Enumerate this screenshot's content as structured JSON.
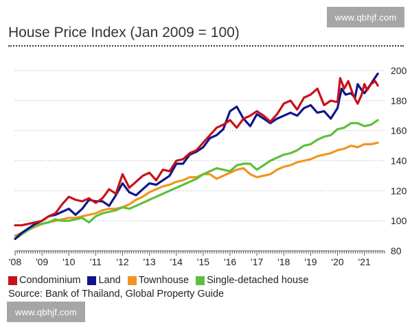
{
  "watermark": {
    "top": "www.qbhjf.com",
    "bottom": "www.qbhjf.com"
  },
  "chart_data": {
    "type": "line",
    "title": "House Price Index (Jan 2009 = 100)",
    "xlabel": "",
    "ylabel": "",
    "x_range": [
      2008.0,
      2021.75
    ],
    "ylim": [
      80,
      200
    ],
    "x_ticks": [
      {
        "value": 2008.0,
        "label": "'08"
      },
      {
        "value": 2009.0,
        "label": "'09"
      },
      {
        "value": 2010.0,
        "label": "'10"
      },
      {
        "value": 2011.0,
        "label": "'11"
      },
      {
        "value": 2012.0,
        "label": "'12"
      },
      {
        "value": 2013.0,
        "label": "'13"
      },
      {
        "value": 2014.0,
        "label": "'14"
      },
      {
        "value": 2015.0,
        "label": "'15"
      },
      {
        "value": 2016.0,
        "label": "'16"
      },
      {
        "value": 2017.0,
        "label": "'17"
      },
      {
        "value": 2018.0,
        "label": "'18"
      },
      {
        "value": 2019.0,
        "label": "'19"
      },
      {
        "value": 2020.0,
        "label": "'20"
      },
      {
        "value": 2021.0,
        "label": "'21"
      }
    ],
    "y_ticks": [
      80,
      100,
      120,
      140,
      160,
      180,
      200
    ],
    "grid": "horizontal dotted",
    "legend_position": "bottom",
    "series": [
      {
        "name": "Condominium",
        "color": "#c8101a",
        "points": [
          [
            2008.0,
            97
          ],
          [
            2008.25,
            97
          ],
          [
            2008.5,
            98
          ],
          [
            2008.75,
            99
          ],
          [
            2009.0,
            100
          ],
          [
            2009.25,
            103
          ],
          [
            2009.5,
            105
          ],
          [
            2009.75,
            111
          ],
          [
            2010.0,
            116
          ],
          [
            2010.25,
            114
          ],
          [
            2010.5,
            113
          ],
          [
            2010.75,
            115
          ],
          [
            2011.0,
            112
          ],
          [
            2011.25,
            115
          ],
          [
            2011.5,
            121
          ],
          [
            2011.75,
            118
          ],
          [
            2012.0,
            131
          ],
          [
            2012.25,
            122
          ],
          [
            2012.5,
            126
          ],
          [
            2012.75,
            130
          ],
          [
            2013.0,
            132
          ],
          [
            2013.25,
            127
          ],
          [
            2013.5,
            134
          ],
          [
            2013.75,
            133
          ],
          [
            2014.0,
            140
          ],
          [
            2014.25,
            141
          ],
          [
            2014.5,
            145
          ],
          [
            2014.75,
            147
          ],
          [
            2015.0,
            152
          ],
          [
            2015.25,
            157
          ],
          [
            2015.5,
            162
          ],
          [
            2015.75,
            164
          ],
          [
            2016.0,
            167
          ],
          [
            2016.25,
            162
          ],
          [
            2016.5,
            168
          ],
          [
            2016.75,
            170
          ],
          [
            2017.0,
            173
          ],
          [
            2017.25,
            170
          ],
          [
            2017.5,
            166
          ],
          [
            2017.75,
            171
          ],
          [
            2018.0,
            178
          ],
          [
            2018.25,
            180
          ],
          [
            2018.5,
            174
          ],
          [
            2018.75,
            182
          ],
          [
            2019.0,
            184
          ],
          [
            2019.25,
            188
          ],
          [
            2019.5,
            177
          ],
          [
            2019.75,
            180
          ],
          [
            2020.0,
            179
          ],
          [
            2020.1,
            195
          ],
          [
            2020.25,
            188
          ],
          [
            2020.4,
            193
          ],
          [
            2020.6,
            183
          ],
          [
            2020.75,
            178
          ],
          [
            2020.9,
            184
          ],
          [
            2021.0,
            191
          ],
          [
            2021.1,
            187
          ],
          [
            2021.25,
            191
          ],
          [
            2021.4,
            193
          ],
          [
            2021.5,
            190
          ]
        ]
      },
      {
        "name": "Land",
        "color": "#10148c",
        "points": [
          [
            2008.0,
            88
          ],
          [
            2008.25,
            92
          ],
          [
            2008.5,
            95
          ],
          [
            2008.75,
            98
          ],
          [
            2009.0,
            100
          ],
          [
            2009.25,
            103
          ],
          [
            2009.5,
            104
          ],
          [
            2009.75,
            106
          ],
          [
            2010.0,
            108
          ],
          [
            2010.25,
            104
          ],
          [
            2010.5,
            108
          ],
          [
            2010.75,
            114
          ],
          [
            2011.0,
            113
          ],
          [
            2011.25,
            113
          ],
          [
            2011.5,
            110
          ],
          [
            2011.75,
            117
          ],
          [
            2012.0,
            125
          ],
          [
            2012.25,
            119
          ],
          [
            2012.5,
            117
          ],
          [
            2012.75,
            121
          ],
          [
            2013.0,
            125
          ],
          [
            2013.25,
            124
          ],
          [
            2013.5,
            127
          ],
          [
            2013.75,
            130
          ],
          [
            2014.0,
            138
          ],
          [
            2014.25,
            138
          ],
          [
            2014.5,
            144
          ],
          [
            2014.75,
            146
          ],
          [
            2015.0,
            149
          ],
          [
            2015.25,
            155
          ],
          [
            2015.5,
            157
          ],
          [
            2015.75,
            161
          ],
          [
            2016.0,
            173
          ],
          [
            2016.25,
            176
          ],
          [
            2016.5,
            168
          ],
          [
            2016.75,
            163
          ],
          [
            2017.0,
            171
          ],
          [
            2017.25,
            168
          ],
          [
            2017.5,
            165
          ],
          [
            2017.75,
            168
          ],
          [
            2018.0,
            170
          ],
          [
            2018.25,
            172
          ],
          [
            2018.5,
            170
          ],
          [
            2018.75,
            175
          ],
          [
            2019.0,
            177
          ],
          [
            2019.25,
            172
          ],
          [
            2019.5,
            173
          ],
          [
            2019.75,
            168
          ],
          [
            2020.0,
            175
          ],
          [
            2020.15,
            188
          ],
          [
            2020.3,
            184
          ],
          [
            2020.5,
            185
          ],
          [
            2020.65,
            182
          ],
          [
            2020.75,
            191
          ],
          [
            2020.9,
            187
          ],
          [
            2021.0,
            185
          ],
          [
            2021.2,
            190
          ],
          [
            2021.35,
            194
          ],
          [
            2021.5,
            198
          ]
        ]
      },
      {
        "name": "Townhouse",
        "color": "#f0951e",
        "points": [
          [
            2008.0,
            90
          ],
          [
            2008.25,
            92
          ],
          [
            2008.5,
            94
          ],
          [
            2008.75,
            96
          ],
          [
            2009.0,
            98
          ],
          [
            2009.25,
            99
          ],
          [
            2009.5,
            100
          ],
          [
            2009.75,
            101
          ],
          [
            2010.0,
            102
          ],
          [
            2010.25,
            102
          ],
          [
            2010.5,
            103
          ],
          [
            2010.75,
            104
          ],
          [
            2011.0,
            105
          ],
          [
            2011.25,
            107
          ],
          [
            2011.5,
            108
          ],
          [
            2011.75,
            108
          ],
          [
            2012.0,
            109
          ],
          [
            2012.25,
            111
          ],
          [
            2012.5,
            114
          ],
          [
            2012.75,
            116
          ],
          [
            2013.0,
            119
          ],
          [
            2013.25,
            121
          ],
          [
            2013.5,
            123
          ],
          [
            2013.75,
            124
          ],
          [
            2014.0,
            126
          ],
          [
            2014.25,
            127
          ],
          [
            2014.5,
            129
          ],
          [
            2014.75,
            129
          ],
          [
            2015.0,
            131
          ],
          [
            2015.25,
            131
          ],
          [
            2015.5,
            128
          ],
          [
            2015.75,
            130
          ],
          [
            2016.0,
            132
          ],
          [
            2016.25,
            134
          ],
          [
            2016.5,
            135
          ],
          [
            2016.75,
            131
          ],
          [
            2017.0,
            129
          ],
          [
            2017.25,
            130
          ],
          [
            2017.5,
            131
          ],
          [
            2017.75,
            134
          ],
          [
            2018.0,
            136
          ],
          [
            2018.25,
            137
          ],
          [
            2018.5,
            139
          ],
          [
            2018.75,
            140
          ],
          [
            2019.0,
            141
          ],
          [
            2019.25,
            143
          ],
          [
            2019.5,
            144
          ],
          [
            2019.75,
            145
          ],
          [
            2020.0,
            147
          ],
          [
            2020.25,
            148
          ],
          [
            2020.5,
            150
          ],
          [
            2020.75,
            149
          ],
          [
            2021.0,
            151
          ],
          [
            2021.25,
            151
          ],
          [
            2021.5,
            152
          ]
        ]
      },
      {
        "name": "Single-detached house",
        "color": "#5cbf3c",
        "points": [
          [
            2008.0,
            88
          ],
          [
            2008.25,
            91
          ],
          [
            2008.5,
            94
          ],
          [
            2008.75,
            97
          ],
          [
            2009.0,
            98
          ],
          [
            2009.25,
            99
          ],
          [
            2009.5,
            101
          ],
          [
            2009.75,
            100
          ],
          [
            2010.0,
            100
          ],
          [
            2010.25,
            101
          ],
          [
            2010.5,
            102
          ],
          [
            2010.75,
            99
          ],
          [
            2011.0,
            103
          ],
          [
            2011.25,
            105
          ],
          [
            2011.5,
            106
          ],
          [
            2011.75,
            107
          ],
          [
            2012.0,
            109
          ],
          [
            2012.25,
            108
          ],
          [
            2012.5,
            110
          ],
          [
            2012.75,
            112
          ],
          [
            2013.0,
            114
          ],
          [
            2013.25,
            116
          ],
          [
            2013.5,
            118
          ],
          [
            2013.75,
            120
          ],
          [
            2014.0,
            122
          ],
          [
            2014.25,
            124
          ],
          [
            2014.5,
            126
          ],
          [
            2014.75,
            128
          ],
          [
            2015.0,
            131
          ],
          [
            2015.25,
            133
          ],
          [
            2015.5,
            135
          ],
          [
            2015.75,
            134
          ],
          [
            2016.0,
            133
          ],
          [
            2016.25,
            137
          ],
          [
            2016.5,
            138
          ],
          [
            2016.75,
            138
          ],
          [
            2017.0,
            134
          ],
          [
            2017.25,
            137
          ],
          [
            2017.5,
            140
          ],
          [
            2017.75,
            142
          ],
          [
            2018.0,
            144
          ],
          [
            2018.25,
            145
          ],
          [
            2018.5,
            147
          ],
          [
            2018.75,
            150
          ],
          [
            2019.0,
            151
          ],
          [
            2019.25,
            154
          ],
          [
            2019.5,
            156
          ],
          [
            2019.75,
            157
          ],
          [
            2020.0,
            161
          ],
          [
            2020.25,
            162
          ],
          [
            2020.5,
            165
          ],
          [
            2020.75,
            165
          ],
          [
            2021.0,
            163
          ],
          [
            2021.25,
            164
          ],
          [
            2021.5,
            167
          ]
        ]
      }
    ]
  },
  "source": "Source: Bank of Thailand, Global Property Guide"
}
